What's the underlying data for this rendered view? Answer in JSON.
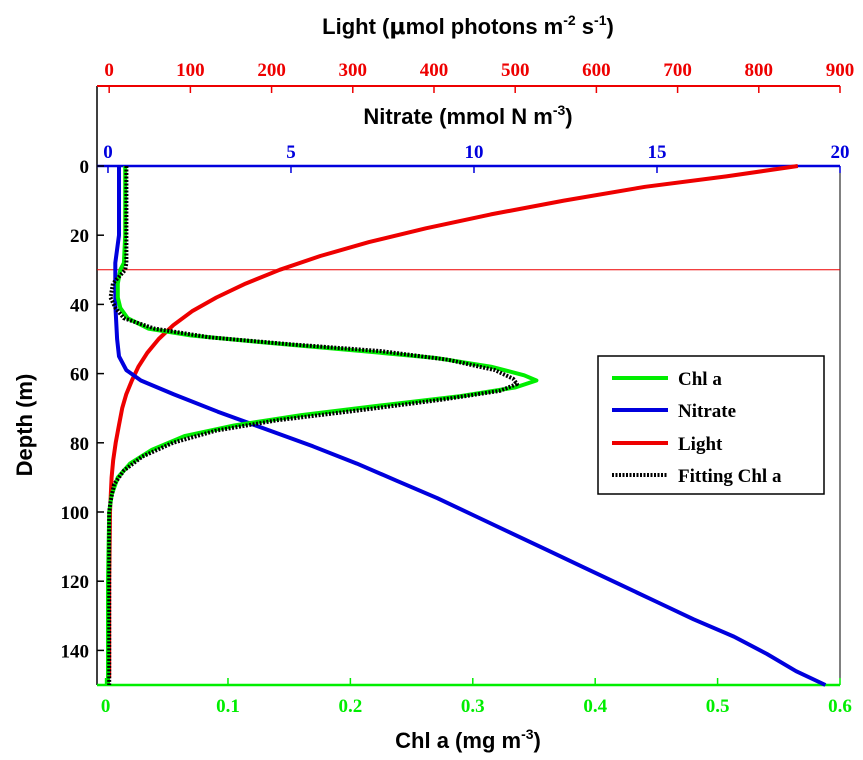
{
  "chart_data": {
    "type": "line",
    "axes": {
      "depth": {
        "label": "Depth (m)",
        "range": [
          0,
          150
        ],
        "ticks": [
          0,
          20,
          40,
          60,
          80,
          100,
          120,
          140
        ],
        "reversed": true,
        "color": "#000000"
      },
      "chl": {
        "label_main": "Chl a (mg m",
        "label_sup": "-3",
        "label_end": ")",
        "range": [
          -0.007,
          0.6
        ],
        "ticks": [
          0,
          0.1,
          0.2,
          0.3,
          0.4,
          0.5,
          0.6
        ],
        "tick_labels": [
          "0",
          "0.1",
          "0.2",
          "0.3",
          "0.4",
          "0.5",
          "0.6"
        ],
        "color": "#00ee00"
      },
      "nitrate": {
        "label_main": "Nitrate (mmol N m",
        "label_sup": "-3",
        "label_end": ")",
        "range": [
          -0.3,
          20
        ],
        "ticks": [
          0,
          5,
          10,
          15,
          20
        ],
        "tick_labels": [
          "0",
          "5",
          "10",
          "15",
          "20"
        ],
        "color": "#0000dd"
      },
      "light": {
        "label_main": "Light (",
        "label_mu": "μ",
        "label_mid": "mol photons m",
        "label_sup1": "-2",
        "label_mid2": " s",
        "label_sup2": "-1",
        "label_end": ")",
        "range": [
          -15,
          900
        ],
        "ticks": [
          0,
          100,
          200,
          300,
          400,
          500,
          600,
          700,
          800,
          900
        ],
        "tick_labels": [
          "0",
          "100",
          "200",
          "300",
          "400",
          "500",
          "600",
          "700",
          "800",
          "900"
        ],
        "color": "#ee0000"
      }
    },
    "reference_line": {
      "depth": 30,
      "color": "#ee0000"
    },
    "series": [
      {
        "name": "Chl a",
        "axis": "chl",
        "color": "#00ee00",
        "style": "solid",
        "points": [
          [
            0.016,
            0
          ],
          [
            0.016,
            10
          ],
          [
            0.016,
            20
          ],
          [
            0.015,
            28
          ],
          [
            0.012,
            30
          ],
          [
            0.01,
            34
          ],
          [
            0.01,
            38
          ],
          [
            0.012,
            41
          ],
          [
            0.018,
            44
          ],
          [
            0.035,
            47
          ],
          [
            0.07,
            49
          ],
          [
            0.13,
            51
          ],
          [
            0.21,
            53.5
          ],
          [
            0.27,
            55.5
          ],
          [
            0.315,
            58
          ],
          [
            0.342,
            60.5
          ],
          [
            0.352,
            62
          ],
          [
            0.335,
            64
          ],
          [
            0.29,
            66.5
          ],
          [
            0.23,
            69
          ],
          [
            0.16,
            72
          ],
          [
            0.105,
            75
          ],
          [
            0.065,
            78
          ],
          [
            0.038,
            82
          ],
          [
            0.02,
            86
          ],
          [
            0.01,
            90
          ],
          [
            0.005,
            95
          ],
          [
            0.003,
            100
          ],
          [
            0.002,
            120
          ],
          [
            0.002,
            150
          ]
        ]
      },
      {
        "name": "Nitrate",
        "axis": "nitrate",
        "color": "#0000dd",
        "style": "solid",
        "points": [
          [
            0.3,
            0
          ],
          [
            0.3,
            10
          ],
          [
            0.3,
            20
          ],
          [
            0.2,
            28
          ],
          [
            0.2,
            40
          ],
          [
            0.25,
            50
          ],
          [
            0.3,
            55
          ],
          [
            0.5,
            59
          ],
          [
            0.9,
            62
          ],
          [
            1.8,
            66
          ],
          [
            3.0,
            71
          ],
          [
            4.3,
            76
          ],
          [
            5.6,
            81
          ],
          [
            6.8,
            86
          ],
          [
            7.9,
            91
          ],
          [
            9.0,
            96
          ],
          [
            10.0,
            101
          ],
          [
            11.0,
            106
          ],
          [
            12.0,
            111
          ],
          [
            13.0,
            116
          ],
          [
            14.0,
            121
          ],
          [
            15.0,
            126
          ],
          [
            16.0,
            131
          ],
          [
            17.1,
            136
          ],
          [
            18.0,
            141
          ],
          [
            18.8,
            146
          ],
          [
            19.6,
            150
          ]
        ]
      },
      {
        "name": "Light",
        "axis": "light",
        "color": "#ee0000",
        "style": "solid",
        "points": [
          [
            848,
            0
          ],
          [
            760,
            3
          ],
          [
            660,
            6
          ],
          [
            560,
            10
          ],
          [
            470,
            14
          ],
          [
            390,
            18
          ],
          [
            320,
            22
          ],
          [
            260,
            26
          ],
          [
            210,
            30
          ],
          [
            168,
            34
          ],
          [
            132,
            38
          ],
          [
            102,
            42
          ],
          [
            79,
            46
          ],
          [
            61,
            50
          ],
          [
            47,
            54
          ],
          [
            36,
            58
          ],
          [
            28,
            62
          ],
          [
            21,
            66
          ],
          [
            16,
            70
          ],
          [
            12,
            75
          ],
          [
            8,
            80
          ],
          [
            5,
            85
          ],
          [
            3,
            90
          ],
          [
            1,
            100
          ],
          [
            0,
            120
          ],
          [
            0,
            148
          ]
        ]
      },
      {
        "name": "Fitting Chl a",
        "axis": "chl",
        "color": "#000000",
        "style": "dotted",
        "points": [
          [
            0.017,
            0
          ],
          [
            0.017,
            10
          ],
          [
            0.017,
            20
          ],
          [
            0.017,
            28
          ],
          [
            0.016,
            30
          ],
          [
            0.006,
            34
          ],
          [
            0.004,
            38
          ],
          [
            0.008,
            41
          ],
          [
            0.015,
            44
          ],
          [
            0.04,
            47
          ],
          [
            0.085,
            49.5
          ],
          [
            0.15,
            51.5
          ],
          [
            0.225,
            53.5
          ],
          [
            0.28,
            56
          ],
          [
            0.318,
            59
          ],
          [
            0.333,
            61.5
          ],
          [
            0.336,
            63
          ],
          [
            0.322,
            65
          ],
          [
            0.275,
            67.5
          ],
          [
            0.21,
            70.5
          ],
          [
            0.14,
            73.5
          ],
          [
            0.09,
            76.5
          ],
          [
            0.055,
            80
          ],
          [
            0.03,
            84
          ],
          [
            0.015,
            88
          ],
          [
            0.007,
            92
          ],
          [
            0.004,
            97
          ],
          [
            0.003,
            100
          ],
          [
            0.003,
            120
          ],
          [
            0.003,
            150
          ]
        ]
      }
    ],
    "legend": {
      "placement": "center-right",
      "entries": [
        "Chl a",
        "Nitrate",
        "Light",
        "Fitting Chl a"
      ]
    }
  }
}
